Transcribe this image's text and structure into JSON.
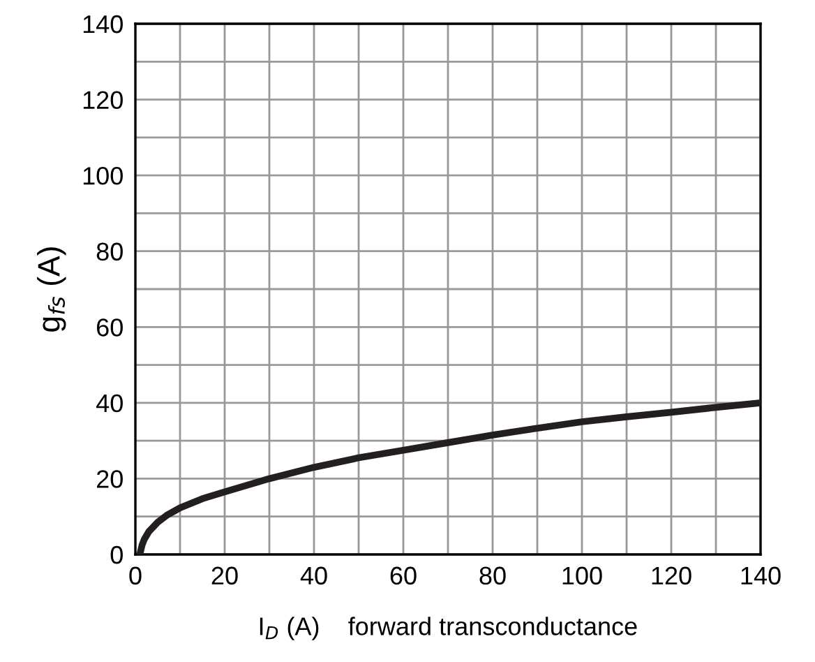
{
  "chart_data": {
    "type": "line",
    "xlabel": "I$_{D}$ (A)    forward transconductance",
    "ylabel": "g$_{fs}$ (A)",
    "x": [
      1,
      1.5,
      2,
      3,
      5,
      7,
      10,
      15,
      20,
      30,
      40,
      50,
      60,
      70,
      80,
      90,
      100,
      110,
      120,
      130,
      140
    ],
    "series": [
      {
        "color": "#231f20",
        "values": [
          0,
          2.5,
          4,
          6,
          8.5,
          10.3,
          12.3,
          14.7,
          16.5,
          20,
          23,
          25.5,
          27.5,
          29.5,
          31.5,
          33.3,
          35,
          36.3,
          37.5,
          38.8,
          40
        ]
      }
    ],
    "xlim": [
      0,
      140
    ],
    "ylim": [
      0,
      140
    ],
    "xticks": [
      0,
      {
        "value": 10,
        "label": null
      },
      20,
      {
        "value": 30,
        "label": null
      },
      40,
      {
        "value": 50,
        "label": null
      },
      60,
      {
        "value": 70,
        "label": null
      },
      80,
      {
        "value": 90,
        "label": null
      },
      100,
      {
        "value": 110,
        "label": null
      },
      120,
      {
        "value": 130,
        "label": null
      },
      140
    ],
    "yticks": [
      0,
      {
        "value": 10,
        "label": null
      },
      20,
      {
        "value": 30,
        "label": null
      },
      40,
      {
        "value": 50,
        "label": null
      },
      60,
      {
        "value": 70,
        "label": null
      },
      80,
      {
        "value": 90,
        "label": null
      },
      100,
      {
        "value": 110,
        "label": null
      },
      120,
      {
        "value": 130,
        "label": null
      },
      140
    ],
    "grid": true,
    "legend": false,
    "marker": "none",
    "line_style": "solid"
  }
}
